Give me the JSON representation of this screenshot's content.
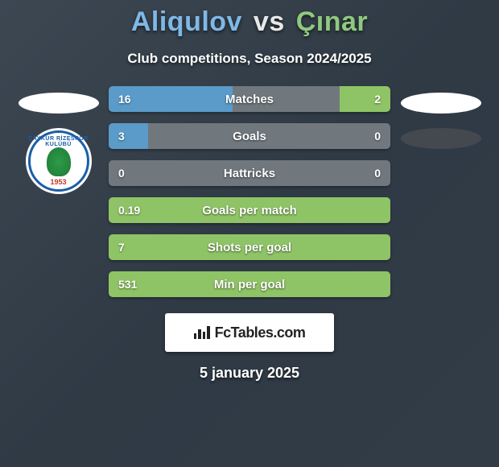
{
  "header": {
    "player1": "Aliqulov",
    "vs": "vs",
    "player2": "Çınar",
    "subtitle": "Club competitions, Season 2024/2025"
  },
  "badge_left": {
    "ring_text": "ÇAYKUR RİZESPOR KULÜBÜ",
    "year": "1953",
    "ring_color": "#1b5ea8",
    "leaf_color": "#2e9b4a"
  },
  "stats": [
    {
      "label": "Matches",
      "left_val": "16",
      "right_val": "2",
      "left_pct": 44,
      "right_pct": 18,
      "left_color": "#5a9bc9",
      "right_color": "#8fc466"
    },
    {
      "label": "Goals",
      "left_val": "3",
      "right_val": "0",
      "left_pct": 14,
      "right_pct": 0,
      "left_color": "#5a9bc9",
      "right_color": "#8fc466"
    },
    {
      "label": "Hattricks",
      "left_val": "0",
      "right_val": "0",
      "left_pct": 0,
      "right_pct": 0,
      "left_color": "#5a9bc9",
      "right_color": "#8fc466"
    },
    {
      "label": "Goals per match",
      "left_val": "0.19",
      "right_val": "",
      "left_pct": 100,
      "right_pct": 0,
      "left_color": "#8fc466",
      "right_color": "#8fc466"
    },
    {
      "label": "Shots per goal",
      "left_val": "7",
      "right_val": "",
      "left_pct": 100,
      "right_pct": 0,
      "left_color": "#8fc466",
      "right_color": "#8fc466"
    },
    {
      "label": "Min per goal",
      "left_val": "531",
      "right_val": "",
      "left_pct": 100,
      "right_pct": 0,
      "left_color": "#8fc466",
      "right_color": "#8fc466"
    }
  ],
  "branding": {
    "text": "FcTables.com"
  },
  "footer": {
    "date": "5 january 2025"
  },
  "colors": {
    "title_p1": "#7fb8e6",
    "title_p2": "#8fc97e",
    "bar_bg": "#70787e"
  }
}
